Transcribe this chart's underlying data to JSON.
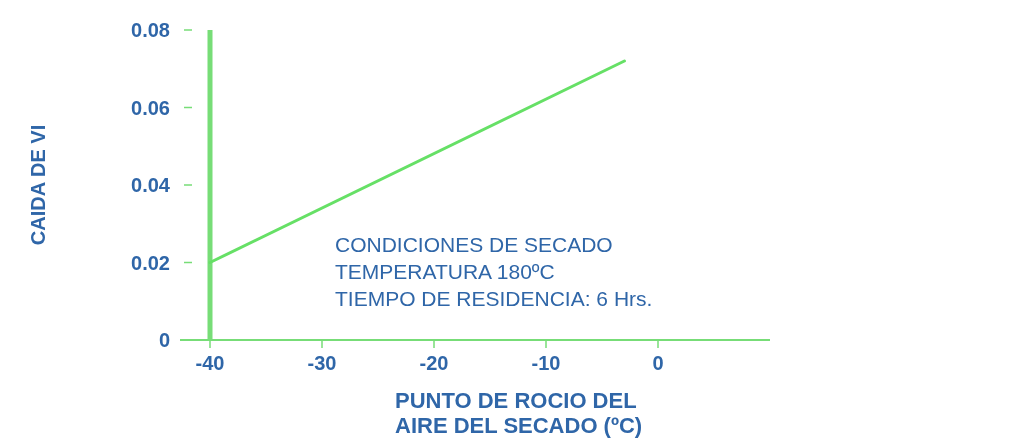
{
  "chart_data": {
    "type": "line",
    "xlabel": "PUNTO DE ROCIO DEL\nAIRE DEL SECADO (ºC)",
    "ylabel": "CAIDA DE VI",
    "x": [
      -40,
      -3
    ],
    "series": [
      {
        "color": "#66e066",
        "values": [
          0.02,
          0.072
        ]
      }
    ],
    "xlim": [
      -40,
      10
    ],
    "xticks": [
      -40,
      -30,
      -20,
      -10,
      0
    ],
    "ylim": [
      0,
      0.08
    ],
    "yticks": [
      0,
      0.02,
      0.04,
      0.06,
      0.08
    ],
    "annotations": [
      "CONDICIONES DE SECADO\nTEMPERATURA 180ºC\nTIEMPO DE RESIDENCIA: 6 Hrs."
    ],
    "grid": false,
    "marker": "none",
    "line_style": "solid"
  }
}
